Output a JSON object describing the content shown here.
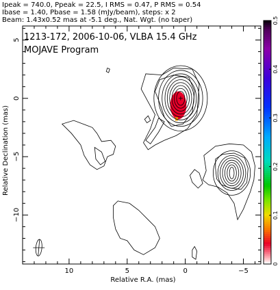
{
  "header": {
    "line1": "Ipeak = 740.0, Ppeak = 22.5, I RMS = 0.47, P RMS = 0.54",
    "line2": "Ibase = 1.40, Pbase = 1.58 (mJy/beam), steps: x 2",
    "line3": "Beam: 1.43x0.52 mas at -5.1 deg., Nat. Wgt. (no taper)"
  },
  "chart_data": {
    "type": "heatmap",
    "title": "1213-172, 2006-10-06, VLBA 15.4 GHz",
    "subtitle": "MOJAVE Program",
    "xlabel": "Relative R.A. (mas)",
    "ylabel": "Relative Declination (mas)",
    "xlim": [
      14,
      -6.5
    ],
    "ylim": [
      -14.2,
      6.2
    ],
    "x_ticks": [
      10,
      5,
      0,
      -5
    ],
    "y_ticks": [
      5,
      0,
      -5,
      -10
    ],
    "x_tick_labels": [
      "10",
      "5",
      "0",
      "−5"
    ],
    "y_tick_labels": [
      "5",
      "0",
      "−5",
      "−10"
    ],
    "colorbar": {
      "min": 0,
      "max": 0.5,
      "ticks": [
        0,
        0.1,
        0.2,
        0.3,
        0.4,
        0.5
      ],
      "tick_labels": [
        "0",
        "0.1",
        "0.2",
        "0.3",
        "0.4",
        "0.5"
      ]
    },
    "core": {
      "x": 0.4,
      "y": 0
    },
    "polarized_patch": {
      "x": 0.6,
      "y": -0.6,
      "half_width": 0.7,
      "half_height": 1.2
    },
    "contour_groups": [
      {
        "cx": 0.4,
        "cy": 0.0,
        "rx": [
          0.35,
          0.55,
          0.75,
          0.95,
          1.15,
          1.35,
          1.6,
          1.9,
          2.3
        ],
        "ry": [
          0.6,
          0.85,
          1.1,
          1.35,
          1.6,
          1.85,
          2.1,
          2.4,
          2.8
        ]
      },
      {
        "cx": -4.0,
        "cy": -6.4,
        "rx": [
          0.2,
          0.4,
          0.6,
          0.8,
          1.0,
          1.2,
          1.6
        ],
        "ry": [
          0.5,
          0.7,
          0.9,
          1.1,
          1.3,
          1.5,
          1.9
        ]
      }
    ],
    "contours": [
      {
        "name": "core-outer",
        "points": [
          [
            3.8,
            0.8
          ],
          [
            3.4,
            2.1
          ],
          [
            2.0,
            2.0
          ],
          [
            1.0,
            2.6
          ],
          [
            -0.6,
            2.5
          ],
          [
            -1.2,
            1.2
          ],
          [
            -1.0,
            -1.4
          ],
          [
            -0.2,
            -2.6
          ],
          [
            0.8,
            -3.2
          ],
          [
            1.8,
            -3.6
          ],
          [
            2.6,
            -4.0
          ],
          [
            3.2,
            -4.4
          ],
          [
            3.6,
            -3.8
          ],
          [
            3.0,
            -2.6
          ],
          [
            2.6,
            -1.4
          ],
          [
            3.2,
            -0.3
          ]
        ]
      },
      {
        "name": "core-inner",
        "points": [
          [
            2.6,
            0.6
          ],
          [
            2.2,
            1.6
          ],
          [
            1.0,
            2.0
          ],
          [
            -0.3,
            1.8
          ],
          [
            -0.8,
            0.6
          ],
          [
            -0.6,
            -1.2
          ],
          [
            0.2,
            -2.2
          ],
          [
            1.2,
            -2.4
          ],
          [
            1.8,
            -1.6
          ],
          [
            2.2,
            -0.4
          ]
        ]
      },
      {
        "name": "core-jet",
        "points": [
          [
            2.3,
            -1.7
          ],
          [
            2.6,
            -2.5
          ],
          [
            3.4,
            -3.6
          ],
          [
            3.0,
            -3.9
          ],
          [
            2.3,
            -2.9
          ],
          [
            1.8,
            -2.0
          ]
        ]
      },
      {
        "name": "west-outer",
        "points": [
          [
            -1.8,
            -6.2
          ],
          [
            -1.6,
            -4.9
          ],
          [
            -2.6,
            -4.1
          ],
          [
            -3.8,
            -3.9
          ],
          [
            -5.0,
            -4.0
          ],
          [
            -5.7,
            -4.6
          ],
          [
            -6.0,
            -5.8
          ],
          [
            -5.9,
            -7.0
          ],
          [
            -5.6,
            -8.0
          ],
          [
            -5.0,
            -9.5
          ],
          [
            -4.5,
            -10.4
          ],
          [
            -4.2,
            -9.0
          ],
          [
            -3.6,
            -8.1
          ],
          [
            -2.8,
            -7.6
          ],
          [
            -2.0,
            -7.4
          ],
          [
            -1.5,
            -7.0
          ]
        ]
      },
      {
        "name": "west-mid",
        "points": [
          [
            -2.6,
            -6.0
          ],
          [
            -2.6,
            -5.2
          ],
          [
            -3.2,
            -4.8
          ],
          [
            -4.2,
            -4.7
          ],
          [
            -5.1,
            -5.1
          ],
          [
            -5.4,
            -6.0
          ],
          [
            -5.3,
            -7.2
          ],
          [
            -4.8,
            -7.8
          ],
          [
            -3.9,
            -7.7
          ],
          [
            -3.1,
            -7.4
          ],
          [
            -2.7,
            -6.9
          ]
        ]
      },
      {
        "name": "west-plume",
        "points": [
          [
            -0.4,
            -6.6
          ],
          [
            -0.8,
            -6.1
          ],
          [
            -1.2,
            -6.4
          ],
          [
            -1.5,
            -7.3
          ],
          [
            -1.1,
            -7.7
          ],
          [
            -0.6,
            -7.2
          ]
        ]
      },
      {
        "name": "east-cloud",
        "points": [
          [
            10.6,
            -2.2
          ],
          [
            9.8,
            -3.0
          ],
          [
            9.0,
            -4.0
          ],
          [
            8.7,
            -4.9
          ],
          [
            8.2,
            -5.7
          ],
          [
            7.6,
            -6.1
          ],
          [
            7.0,
            -5.8
          ],
          [
            6.7,
            -5.0
          ],
          [
            6.2,
            -4.8
          ],
          [
            6.0,
            -4.1
          ],
          [
            6.4,
            -3.6
          ],
          [
            7.2,
            -3.7
          ],
          [
            7.6,
            -3.0
          ],
          [
            8.0,
            -2.5
          ],
          [
            8.8,
            -2.2
          ],
          [
            9.6,
            -1.9
          ]
        ]
      },
      {
        "name": "east-knot",
        "points": [
          [
            7.8,
            -4.2
          ],
          [
            7.2,
            -4.6
          ],
          [
            6.9,
            -5.4
          ],
          [
            7.3,
            -5.7
          ],
          [
            7.7,
            -5.2
          ]
        ]
      },
      {
        "name": "south-blob",
        "points": [
          [
            5.8,
            -8.8
          ],
          [
            4.8,
            -9.0
          ],
          [
            4.0,
            -9.6
          ],
          [
            3.2,
            -10.4
          ],
          [
            2.6,
            -11.0
          ],
          [
            2.2,
            -12.0
          ],
          [
            2.6,
            -12.8
          ],
          [
            3.6,
            -13.4
          ],
          [
            4.4,
            -13.0
          ],
          [
            5.0,
            -12.2
          ],
          [
            5.6,
            -12.0
          ],
          [
            6.0,
            -11.2
          ],
          [
            6.2,
            -10.2
          ],
          [
            6.2,
            -9.2
          ]
        ]
      },
      {
        "name": "sw-blob",
        "points": [
          [
            -0.6,
            -13.0
          ],
          [
            -0.8,
            -12.7
          ],
          [
            -1.0,
            -13.1
          ],
          [
            -0.9,
            -13.8
          ],
          [
            -0.6,
            -13.6
          ]
        ]
      },
      {
        "name": "north-speck",
        "points": [
          [
            6.6,
            2.2
          ],
          [
            6.5,
            2.5
          ],
          [
            6.7,
            2.6
          ],
          [
            6.8,
            2.3
          ]
        ]
      },
      {
        "name": "east-speck",
        "points": [
          [
            3.2,
            -1.5
          ],
          [
            3.0,
            -1.9
          ],
          [
            3.3,
            -2.1
          ],
          [
            3.5,
            -1.8
          ]
        ]
      }
    ],
    "beam": {
      "x": 12.6,
      "y": -12.8,
      "major": 1.43,
      "minor": 0.52,
      "pa": -5.1
    }
  }
}
